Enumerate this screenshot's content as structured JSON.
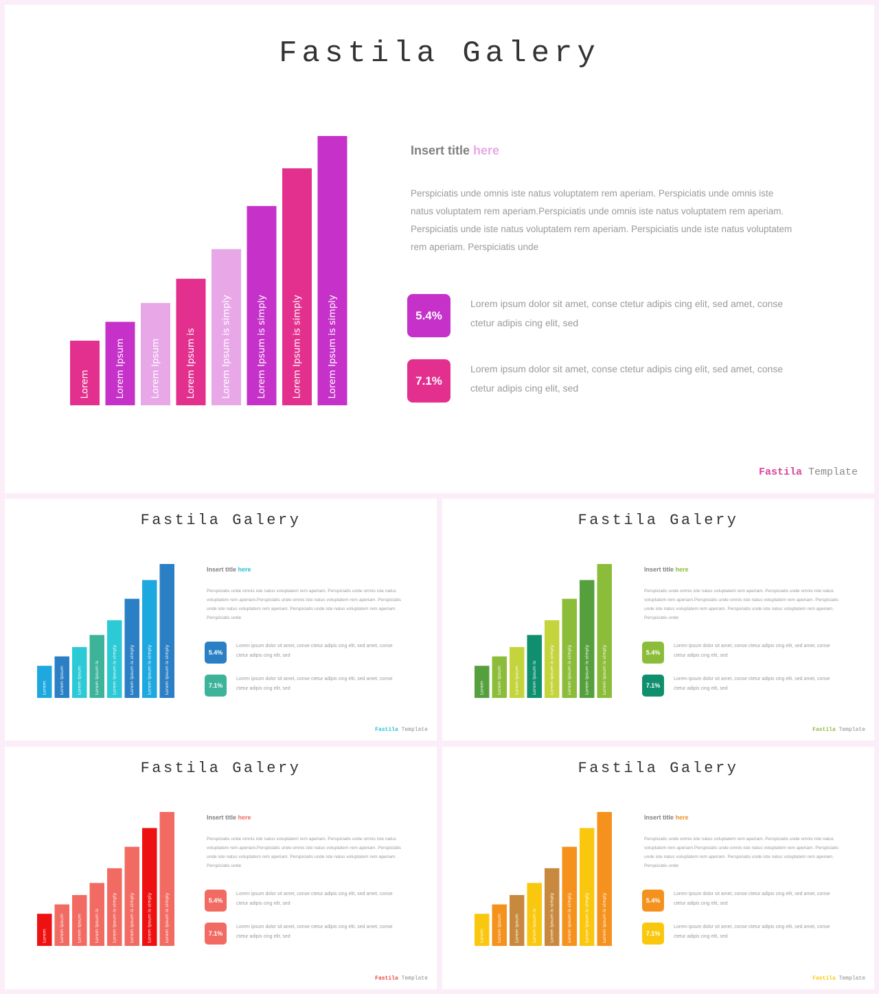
{
  "slides": [
    {
      "title": "Fastila Galery",
      "insert_title": "Insert title ",
      "insert_accent": "here",
      "paragraph": "Perspiciatis unde omnis iste natus voluptatem rem aperiam. Perspiciatis unde omnis iste natus voluptatem rem aperiam.Perspiciatis unde omnis iste natus voluptatem rem aperiam. Perspiciatis unde iste natus voluptatem rem aperiam. Perspiciatis unde iste natus voluptatem rem aperiam. Perspiciatis unde",
      "stats": [
        {
          "value": "5.4%",
          "text": "Lorem ipsum dolor sit amet, conse ctetur adipis cing elit, sed amet, conse ctetur adipis cing elit, sed"
        },
        {
          "value": "7.1%",
          "text": "Lorem ipsum dolor sit amet, conse ctetur adipis cing elit, sed amet, conse ctetur adipis cing elit, sed"
        }
      ],
      "footer_brand": "Fastila",
      "footer_rest": " Template",
      "colors": {
        "accent": "#e8a8e8",
        "badge1": "#c531c9",
        "badge2": "#e3308e",
        "brand": "#d6449e"
      },
      "chart_data": {
        "type": "bar",
        "categories": [
          "Lorem",
          "Lorem Ipsum",
          "Lorem Ipsum",
          "Lorem Ipsum is",
          "Lorem Ipsum is simply",
          "Lorem Ipsum is simply",
          "Lorem Ipsum is simply",
          "Lorem Ipsum is simply"
        ],
        "values": [
          24,
          31,
          38,
          47,
          58,
          74,
          88,
          100
        ],
        "colors": [
          "#e3308e",
          "#c531c9",
          "#e8a8e8",
          "#e3308e",
          "#e8a8e8",
          "#c531c9",
          "#e3308e",
          "#c531c9"
        ]
      }
    },
    {
      "title": "Fastila Galery",
      "insert_title": "Insert title ",
      "insert_accent": "here",
      "paragraph": "Perspiciatis unde omnis iste natus voluptatem rem aperiam. Perspiciatis unde omnis iste natus voluptatem rem aperiam.Perspiciatis unde omnis iste natus voluptatem rem aperiam. Perspiciatis unde iste natus voluptatem rem aperiam. Perspiciatis unde iste natus voluptatem rem aperiam. Perspiciatis unde",
      "stats": [
        {
          "value": "5.4%",
          "text": "Lorem ipsum dolor sit amet, conse ctetur adipis cing elit, sed amet, conse ctetur adipis cing elit, sed"
        },
        {
          "value": "7.1%",
          "text": "Lorem ipsum dolor sit amet, conse ctetur adipis cing elit, sed amet, conse ctetur adipis cing elit, sed"
        }
      ],
      "footer_brand": "Fastila",
      "footer_rest": " Template",
      "colors": {
        "accent": "#2abfd6",
        "badge1": "#2b7fc4",
        "badge2": "#3db39a",
        "brand": "#2abfd6"
      },
      "chart_data": {
        "type": "bar",
        "categories": [
          "Lorem",
          "Lorem Ipsum",
          "Lorem Ipsum",
          "Lorem Ipsum is",
          "Lorem Ipsum is simply",
          "Lorem Ipsum is simply",
          "Lorem Ipsum is simply",
          "Lorem Ipsum is simply"
        ],
        "values": [
          24,
          31,
          38,
          47,
          58,
          74,
          88,
          100
        ],
        "colors": [
          "#1ea8e0",
          "#2b7fc4",
          "#2bcad6",
          "#3db39a",
          "#2bcad6",
          "#2b7fc4",
          "#1ea8e0",
          "#2b7fc4"
        ]
      }
    },
    {
      "title": "Fastila Galery",
      "insert_title": "Insert title ",
      "insert_accent": "here",
      "paragraph": "Perspiciatis unde omnis iste natus voluptatem rem aperiam. Perspiciatis unde omnis iste natus voluptatem rem aperiam.Perspiciatis unde omnis iste natus voluptatem rem aperiam. Perspiciatis unde iste natus voluptatem rem aperiam. Perspiciatis unde iste natus voluptatem rem aperiam. Perspiciatis unde",
      "stats": [
        {
          "value": "5.4%",
          "text": "Lorem ipsum dolor sit amet, conse ctetur adipis cing elit, sed amet, conse ctetur adipis cing elit, sed"
        },
        {
          "value": "7.1%",
          "text": "Lorem ipsum dolor sit amet, conse ctetur adipis cing elit, sed amet, conse ctetur adipis cing elit, sed"
        }
      ],
      "footer_brand": "Fastila",
      "footer_rest": " Template",
      "colors": {
        "accent": "#8bbd3a",
        "badge1": "#8bbd3a",
        "badge2": "#0f8f6e",
        "brand": "#8bbd3a"
      },
      "chart_data": {
        "type": "bar",
        "categories": [
          "Lorem",
          "Lorem Ipsum",
          "Lorem Ipsum",
          "Lorem Ipsum is",
          "Lorem Ipsum is simply",
          "Lorem Ipsum is simply",
          "Lorem Ipsum is simply",
          "Lorem Ipsum is simply"
        ],
        "values": [
          24,
          31,
          38,
          47,
          58,
          74,
          88,
          100
        ],
        "colors": [
          "#55a03c",
          "#8bbd3a",
          "#c3d43c",
          "#0f8f6e",
          "#c3d43c",
          "#8bbd3a",
          "#55a03c",
          "#8bbd3a"
        ]
      }
    },
    {
      "title": "Fastila Galery",
      "insert_title": "Insert title ",
      "insert_accent": "here",
      "paragraph": "Perspiciatis unde omnis iste natus voluptatem rem aperiam. Perspiciatis unde omnis iste natus voluptatem rem aperiam.Perspiciatis unde omnis iste natus voluptatem rem aperiam. Perspiciatis unde iste natus voluptatem rem aperiam. Perspiciatis unde iste natus voluptatem rem aperiam. Perspiciatis unde",
      "stats": [
        {
          "value": "5.4%",
          "text": "Lorem ipsum dolor sit amet, conse ctetur adipis cing elit, sed amet, conse ctetur adipis cing elit, sed"
        },
        {
          "value": "7.1%",
          "text": "Lorem ipsum dolor sit amet, conse ctetur adipis cing elit, sed amet, conse ctetur adipis cing elit, sed"
        }
      ],
      "footer_brand": "Fastila",
      "footer_rest": " Template",
      "colors": {
        "accent": "#f26b63",
        "badge1": "#f26b63",
        "badge2": "#f26b63",
        "brand": "#e8423a"
      },
      "chart_data": {
        "type": "bar",
        "categories": [
          "Lorem",
          "Lorem Ipsum",
          "Lorem Ipsum",
          "Lorem Ipsum is",
          "Lorem Ipsum is simply",
          "Lorem Ipsum is simply",
          "Lorem Ipsum is simply",
          "Lorem Ipsum is simply"
        ],
        "values": [
          24,
          31,
          38,
          47,
          58,
          74,
          88,
          100
        ],
        "colors": [
          "#ee1111",
          "#f26b63",
          "#f26b63",
          "#f26b63",
          "#f26b63",
          "#f26b63",
          "#ee1111",
          "#f26b63"
        ]
      }
    },
    {
      "title": "Fastila Galery",
      "insert_title": "Insert title ",
      "insert_accent": "here",
      "paragraph": "Perspiciatis unde omnis iste natus voluptatem rem aperiam. Perspiciatis unde omnis iste natus voluptatem rem aperiam.Perspiciatis unde omnis iste natus voluptatem rem aperiam. Perspiciatis unde iste natus voluptatem rem aperiam. Perspiciatis unde iste natus voluptatem rem aperiam. Perspiciatis unde",
      "stats": [
        {
          "value": "5.4%",
          "text": "Lorem ipsum dolor sit amet, conse ctetur adipis cing elit, sed amet, conse ctetur adipis cing elit, sed"
        },
        {
          "value": "7.1%",
          "text": "Lorem ipsum dolor sit amet, conse ctetur adipis cing elit, sed amet, conse ctetur adipis cing elit, sed"
        }
      ],
      "footer_brand": "Fastila",
      "footer_rest": " Template",
      "colors": {
        "accent": "#e8922a",
        "badge1": "#f5921e",
        "badge2": "#f9c80e",
        "brand": "#f9c80e"
      },
      "chart_data": {
        "type": "bar",
        "categories": [
          "Lorem",
          "Lorem Ipsum",
          "Lorem Ipsum",
          "Lorem Ipsum is",
          "Lorem Ipsum is simply",
          "Lorem Ipsum is simply",
          "Lorem Ipsum is simply",
          "Lorem Ipsum is simply"
        ],
        "values": [
          24,
          31,
          38,
          47,
          58,
          74,
          88,
          100
        ],
        "colors": [
          "#f9c80e",
          "#f5921e",
          "#c8893e",
          "#f9c80e",
          "#c8893e",
          "#f5921e",
          "#f9c80e",
          "#f5921e"
        ]
      }
    }
  ]
}
